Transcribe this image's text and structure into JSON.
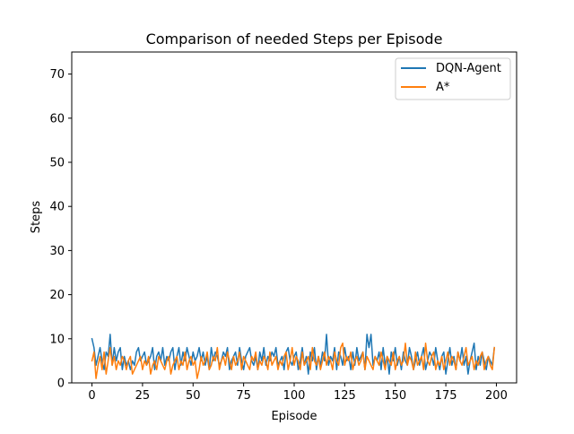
{
  "chart_data": {
    "type": "line",
    "title": "Comparison of needed Steps per Episode",
    "xlabel": "Episode",
    "ylabel": "Steps",
    "xlim": [
      -10,
      210
    ],
    "ylim": [
      0,
      75
    ],
    "xticks": [
      0,
      25,
      50,
      75,
      100,
      125,
      150,
      175,
      200
    ],
    "yticks": [
      0,
      10,
      20,
      30,
      40,
      50,
      60,
      70
    ],
    "xtick_labels": [
      "0",
      "25",
      "50",
      "75",
      "100",
      "125",
      "150",
      "175",
      "200"
    ],
    "ytick_labels": [
      "0",
      "10",
      "20",
      "30",
      "40",
      "50",
      "60",
      "70"
    ],
    "grid": false,
    "legend_position": "top-right",
    "series": [
      {
        "name": "DQN-Agent",
        "color": "#1f77b4",
        "values": [
          10,
          8,
          4,
          6,
          8,
          5,
          3,
          7,
          6,
          11,
          4,
          8,
          5,
          7,
          8,
          3,
          6,
          4,
          5,
          3,
          5,
          4,
          7,
          8,
          5,
          6,
          7,
          4,
          5,
          6,
          8,
          3,
          6,
          7,
          5,
          8,
          4,
          6,
          5,
          7,
          8,
          3,
          6,
          8,
          4,
          7,
          5,
          8,
          6,
          4,
          7,
          5,
          6,
          8,
          5,
          7,
          4,
          6,
          3,
          8,
          5,
          7,
          6,
          4,
          5,
          7,
          6,
          8,
          3,
          5,
          6,
          7,
          4,
          8,
          5,
          3,
          6,
          7,
          8,
          5,
          4,
          6,
          3,
          7,
          5,
          8,
          4,
          6,
          5,
          7,
          6,
          8,
          4,
          5,
          6,
          3,
          7,
          8,
          5,
          4,
          6,
          7,
          3,
          5,
          8,
          4,
          6,
          2,
          7,
          5,
          8,
          3,
          6,
          4,
          7,
          5,
          11,
          4,
          6,
          5,
          8,
          3,
          7,
          6,
          4,
          8,
          5,
          6,
          3,
          7,
          4,
          8,
          5,
          6,
          7,
          3,
          11,
          8,
          11,
          4,
          6,
          5,
          7,
          3,
          8,
          4,
          6,
          2,
          7,
          5,
          8,
          4,
          6,
          3,
          7,
          5,
          4,
          8,
          6,
          3,
          5,
          7,
          4,
          6,
          8,
          3,
          5,
          7,
          6,
          4,
          8,
          5,
          3,
          6,
          7,
          2,
          5,
          8,
          4,
          6,
          3,
          7,
          5,
          8,
          4,
          6,
          2,
          5,
          7,
          9,
          3,
          6,
          4,
          7,
          5,
          3,
          6,
          5,
          4,
          8
        ]
      },
      {
        "name": "A*",
        "color": "#ff7f0e",
        "values": [
          5,
          7,
          1,
          4,
          6,
          3,
          7,
          2,
          5,
          8,
          4,
          6,
          3,
          5,
          4,
          6,
          5,
          3,
          5,
          6,
          2,
          3,
          4,
          5,
          6,
          3,
          5,
          4,
          6,
          2,
          4,
          5,
          3,
          6,
          5,
          4,
          3,
          5,
          6,
          2,
          4,
          5,
          6,
          3,
          5,
          4,
          7,
          3,
          5,
          6,
          4,
          5,
          1,
          3,
          6,
          4,
          5,
          7,
          3,
          4,
          6,
          5,
          8,
          3,
          5,
          6,
          4,
          7,
          5,
          3,
          6,
          4,
          5,
          7,
          3,
          6,
          5,
          4,
          3,
          6,
          5,
          7,
          3,
          5,
          4,
          6,
          5,
          3,
          7,
          4,
          5,
          6,
          3,
          5,
          4,
          6,
          7,
          3,
          5,
          8,
          4,
          6,
          5,
          3,
          7,
          4,
          5,
          6,
          3,
          8,
          5,
          4,
          6,
          3,
          5,
          7,
          4,
          6,
          5,
          3,
          7,
          5,
          4,
          8,
          9,
          4,
          6,
          5,
          7,
          3,
          5,
          6,
          4,
          5,
          7,
          3,
          6,
          5,
          4,
          3,
          6,
          5,
          4,
          7,
          5,
          3,
          6,
          5,
          4,
          7,
          3,
          5,
          6,
          4,
          5,
          9,
          4,
          6,
          5,
          3,
          7,
          4,
          5,
          6,
          3,
          9,
          5,
          4,
          6,
          7,
          3,
          5,
          4,
          6,
          3,
          5,
          7,
          4,
          6,
          5,
          3,
          7,
          5,
          4,
          6,
          8,
          4,
          5,
          6,
          3,
          5,
          4,
          6,
          7,
          3,
          5,
          6,
          4,
          3,
          8
        ]
      }
    ]
  }
}
